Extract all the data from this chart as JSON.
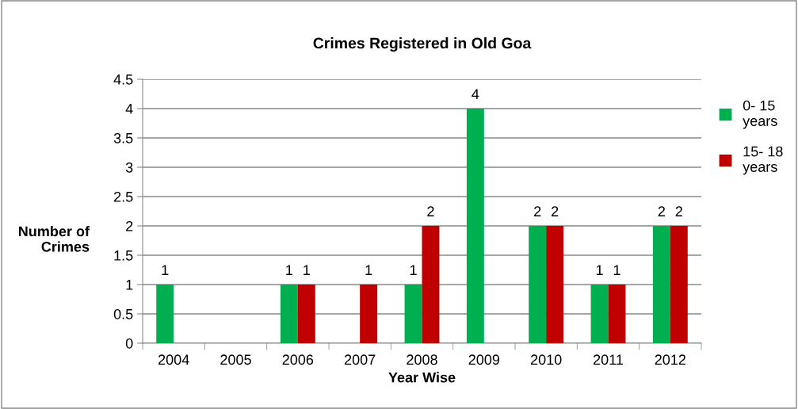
{
  "chart_data": {
    "type": "bar",
    "title": "Crimes Registered in Old Goa",
    "xlabel": "Year Wise",
    "ylabel": "Number of\nCrimes",
    "categories": [
      "2004",
      "2005",
      "2006",
      "2007",
      "2008",
      "2009",
      "2010",
      "2011",
      "2012"
    ],
    "series": [
      {
        "name": "0- 15\nyears",
        "color": "#00b050",
        "values": [
          1,
          0,
          1,
          0,
          1,
          4,
          2,
          1,
          2
        ],
        "value_labels": [
          "1",
          null,
          "1",
          null,
          "1",
          "4",
          "2",
          "1",
          "2"
        ]
      },
      {
        "name": "15- 18\nyears",
        "color": "#c00000",
        "values": [
          0,
          0,
          1,
          1,
          2,
          0,
          2,
          1,
          2
        ],
        "value_labels": [
          null,
          null,
          "1",
          "1",
          "2",
          null,
          "2",
          "1",
          "2"
        ]
      }
    ],
    "ylim": [
      0,
      4.5
    ],
    "yticks": [
      0,
      0.5,
      1,
      1.5,
      2,
      2.5,
      3,
      3.5,
      4,
      4.5
    ],
    "grid": "y",
    "legend": "right"
  }
}
